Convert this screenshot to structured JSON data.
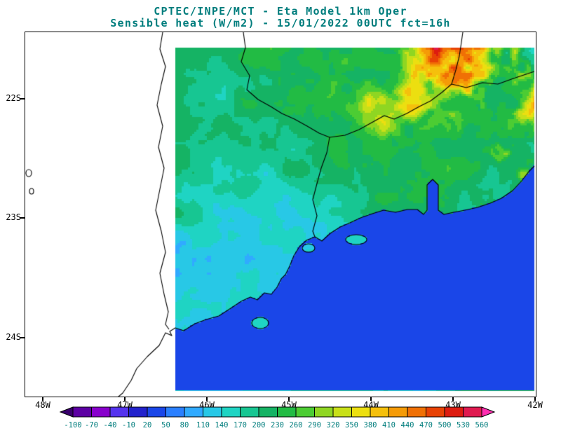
{
  "header": {
    "title_line1": "CPTEC/INPE/MCT -  Eta Model 1km Oper",
    "title_line2": "Sensible heat (W/m2) - 15/01/2022 00UTC fct=16h",
    "title_color": "#007d7d"
  },
  "map": {
    "lat_ticks": [
      "22S",
      "23S",
      "24S"
    ],
    "lon_ticks": [
      "48W",
      "47W",
      "46W",
      "45W",
      "44W",
      "43W",
      "42W"
    ]
  },
  "chart_data": {
    "type": "heatmap",
    "title": "CPTEC/INPE/MCT -  Eta Model 1km Oper",
    "subtitle": "Sensible heat (W/m2) - 15/01/2022 00UTC fct=16h",
    "institution": "CPTEC/INPE/MCT",
    "model": "Eta Model 1km Oper",
    "variable": "Sensible heat",
    "units": "W/m2",
    "init_time": "15/01/2022 00UTC",
    "forecast_hour": "fct=16h",
    "x_axis": {
      "label": "longitude",
      "ticks": [
        "48W",
        "47W",
        "46W",
        "45W",
        "44W",
        "43W",
        "42W"
      ]
    },
    "y_axis": {
      "label": "latitude",
      "ticks": [
        "22S",
        "23S",
        "24S"
      ]
    },
    "grid": false,
    "colorbar": {
      "position": "bottom",
      "levels": [
        -100,
        -70,
        -40,
        -10,
        20,
        50,
        80,
        110,
        140,
        170,
        200,
        230,
        260,
        290,
        320,
        350,
        380,
        410,
        440,
        470,
        500,
        530,
        560
      ],
      "colors": [
        "#38006b",
        "#5c00a3",
        "#8800cc",
        "#5533ee",
        "#2222cc",
        "#1a46e8",
        "#2a7fff",
        "#30aaff",
        "#28c8e6",
        "#1fd4c3",
        "#17c692",
        "#15b364",
        "#22bb44",
        "#4ccc33",
        "#8fd622",
        "#c8e018",
        "#ecdf10",
        "#f5c00c",
        "#f59b07",
        "#f07005",
        "#e84205",
        "#dd1c10",
        "#e01a50",
        "#ff2db0"
      ],
      "label_color": "#007d7d"
    },
    "field_summary": {
      "ocean": "uniform ~20-50 W/m2 (solid blue, lower-right of domain)",
      "land_typical": "140-290 W/m2 (green / teal speckled field)",
      "coastal_southwest": "50-170 W/m2 (cyan and light-blue patches near coast)",
      "highlands_northeast": "320-470 W/m2 (yellow-orange-red patches upper right)",
      "raster_coverage": "data raster covers eastern ~70% of map frame; western strip is blank map background with coastline and state borders"
    }
  }
}
